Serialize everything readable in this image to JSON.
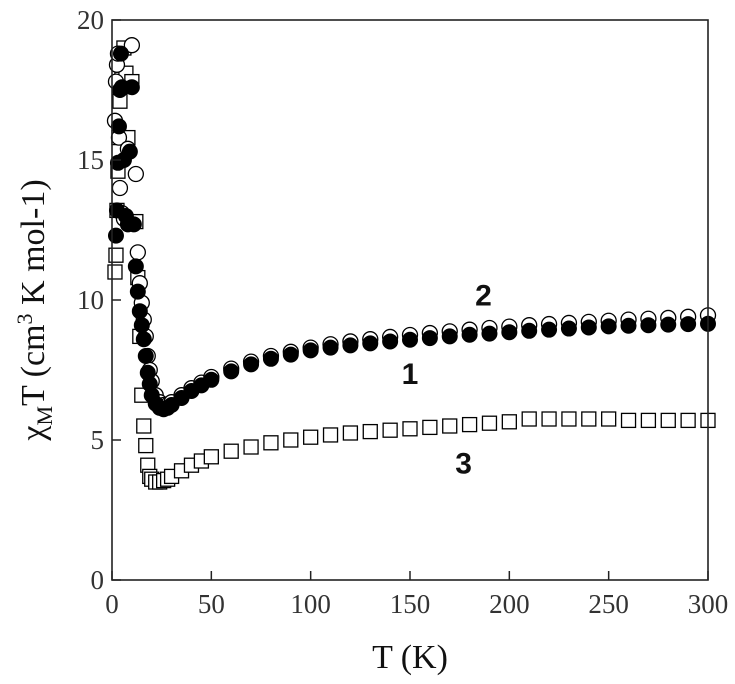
{
  "chart_data": {
    "type": "scatter",
    "title": "",
    "xlabel": "T (K)",
    "ylabel": "χMT (cm3 K mol-1)",
    "ylabel_parts": {
      "symbol": "χ",
      "sub": "M",
      "main": "T (cm",
      "sup": "3",
      "rest": " K mol-1)"
    },
    "xlim": [
      0,
      300
    ],
    "ylim": [
      0,
      20
    ],
    "xticks": [
      0,
      50,
      100,
      150,
      200,
      250,
      300
    ],
    "yticks": [
      0,
      5,
      10,
      15,
      20
    ],
    "xtick_labels": [
      "0",
      "50",
      "100",
      "150",
      "200",
      "250",
      "300"
    ],
    "ytick_labels": [
      "0",
      "5",
      "10",
      "15",
      "20"
    ],
    "grid": false,
    "series_labels": [
      {
        "text": "2",
        "x": 187,
        "y": 9.8
      },
      {
        "text": "1",
        "x": 150,
        "y": 7.0
      },
      {
        "text": "3",
        "x": 177,
        "y": 3.8
      }
    ],
    "series": [
      {
        "id": "1",
        "marker": "filled-circle",
        "color": "#000000",
        "x": [
          2,
          2.5,
          3,
          3.5,
          4,
          4.5,
          5,
          6,
          7,
          8,
          9,
          10,
          11,
          12,
          13,
          14,
          15,
          16,
          17,
          18,
          19,
          20,
          22,
          24,
          26,
          28,
          30,
          35,
          40,
          45,
          50,
          60,
          70,
          80,
          90,
          100,
          110,
          120,
          130,
          140,
          150,
          160,
          170,
          180,
          190,
          200,
          210,
          220,
          230,
          240,
          250,
          260,
          270,
          280,
          290,
          300
        ],
        "y": [
          12.3,
          13.2,
          14.9,
          16.2,
          17.5,
          18.8,
          17.6,
          15.0,
          13.0,
          12.7,
          15.3,
          17.6,
          12.7,
          11.2,
          10.3,
          9.6,
          9.1,
          8.6,
          8.0,
          7.4,
          7.0,
          6.6,
          6.3,
          6.15,
          6.1,
          6.15,
          6.25,
          6.5,
          6.75,
          6.95,
          7.15,
          7.45,
          7.7,
          7.9,
          8.05,
          8.2,
          8.3,
          8.38,
          8.45,
          8.52,
          8.58,
          8.64,
          8.7,
          8.76,
          8.8,
          8.85,
          8.9,
          8.94,
          8.98,
          9.02,
          9.06,
          9.08,
          9.1,
          9.12,
          9.14,
          9.15
        ]
      },
      {
        "id": "2",
        "marker": "open-circle",
        "color": "#000000",
        "x": [
          1.5,
          2,
          2.5,
          3,
          3.5,
          4,
          5,
          6,
          8,
          10,
          12,
          13,
          14,
          15,
          16,
          17,
          18,
          19,
          20,
          22,
          24,
          26,
          28,
          30,
          35,
          40,
          45,
          50,
          60,
          70,
          80,
          90,
          100,
          110,
          120,
          130,
          140,
          150,
          160,
          170,
          180,
          190,
          200,
          210,
          220,
          230,
          240,
          250,
          260,
          270,
          280,
          290,
          300
        ],
        "y": [
          16.4,
          17.8,
          18.4,
          18.8,
          15.8,
          14.0,
          13.1,
          12.9,
          15.4,
          19.1,
          14.5,
          11.7,
          10.6,
          9.9,
          9.3,
          8.7,
          8.0,
          7.5,
          7.1,
          6.6,
          6.35,
          6.25,
          6.25,
          6.35,
          6.6,
          6.85,
          7.05,
          7.25,
          7.55,
          7.8,
          8.0,
          8.15,
          8.3,
          8.42,
          8.52,
          8.6,
          8.68,
          8.75,
          8.82,
          8.88,
          8.94,
          9.0,
          9.05,
          9.1,
          9.14,
          9.18,
          9.22,
          9.26,
          9.3,
          9.33,
          9.36,
          9.4,
          9.45
        ]
      },
      {
        "id": "3",
        "marker": "open-square",
        "color": "#000000",
        "x": [
          1.5,
          2,
          2.5,
          3,
          3.5,
          4,
          5,
          6,
          7,
          8,
          10,
          12,
          13,
          14,
          15,
          16,
          17,
          18,
          19,
          20,
          22,
          24,
          26,
          28,
          30,
          35,
          40,
          45,
          50,
          60,
          70,
          80,
          90,
          100,
          110,
          120,
          130,
          140,
          150,
          160,
          170,
          180,
          190,
          200,
          210,
          220,
          230,
          240,
          250,
          260,
          270,
          280,
          290,
          300
        ],
        "y": [
          11.0,
          11.6,
          13.2,
          14.6,
          15.8,
          17.1,
          17.9,
          19.0,
          18.1,
          15.8,
          17.8,
          12.8,
          10.8,
          8.7,
          6.6,
          5.5,
          4.8,
          4.1,
          3.7,
          3.6,
          3.5,
          3.5,
          3.55,
          3.6,
          3.7,
          3.9,
          4.1,
          4.25,
          4.4,
          4.6,
          4.75,
          4.9,
          5.0,
          5.1,
          5.18,
          5.25,
          5.3,
          5.35,
          5.4,
          5.45,
          5.5,
          5.55,
          5.6,
          5.65,
          5.75,
          5.75,
          5.75,
          5.75,
          5.75,
          5.7,
          5.7,
          5.7,
          5.7,
          5.7
        ]
      }
    ]
  }
}
